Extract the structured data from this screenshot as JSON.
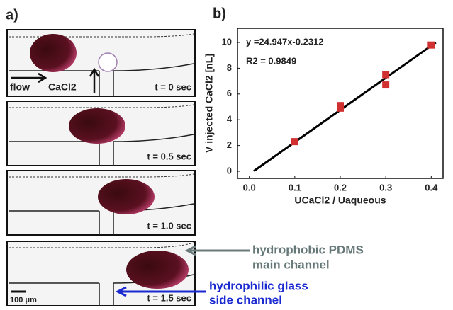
{
  "panel_a": {
    "label": "a)",
    "frame_labels": [
      "t = 0 sec",
      "t = 0.5 sec",
      "t = 1.0 sec",
      "t = 1.5 sec"
    ],
    "flow": "flow",
    "reagent": "CaCl2",
    "scale_bar": "100 μm",
    "main_channel": [
      "hydrophobic PDMS",
      "main channel"
    ],
    "side_channel": [
      "hydrophilic glass",
      "side channel"
    ]
  },
  "chart_data": {
    "type": "scatter",
    "title": "b)",
    "x_label": "UCaCl2 / Uaqueous",
    "y_label": "V injected CaCl2 [nL]",
    "x": [
      0.1,
      0.2,
      0.2,
      0.3,
      0.3,
      0.4
    ],
    "series": [
      {
        "color": "#d03030",
        "values": [
          2.3,
          4.9,
          5.1,
          7.5,
          6.7,
          9.8
        ]
      }
    ],
    "fit": {
      "equation": "y =24.947x-0.2312",
      "slope": 24.947,
      "intercept": -0.2312,
      "x_range": [
        0.01,
        0.41
      ],
      "r2_label": "R2 = 0.9849",
      "color": "#000000"
    },
    "xlim": [
      -0.026,
      0.426
    ],
    "ylim": [
      -0.55,
      11.1
    ],
    "xticks": [
      {
        "value": 0,
        "label": "0.0"
      },
      0.1,
      0.2,
      0.3,
      0.4
    ],
    "yticks": [
      0,
      2,
      4,
      6,
      8,
      10
    ]
  }
}
